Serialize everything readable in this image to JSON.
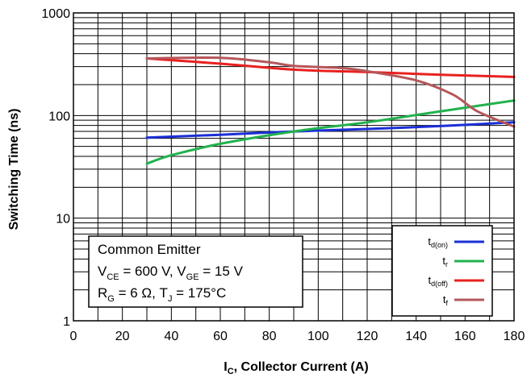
{
  "chart_data": {
    "type": "line",
    "xlabel": {
      "main": "I",
      "sub": "C",
      "rest": ", Collector Current (A)"
    },
    "ylabel": "Switching Time (ns)",
    "xlim": [
      0,
      180
    ],
    "ylim": [
      1,
      1000
    ],
    "y_scale": "log",
    "grid": true,
    "x_ticks": [
      "0",
      "20",
      "40",
      "60",
      "80",
      "100",
      "120",
      "140",
      "160",
      "180"
    ],
    "y_ticks": [
      "1",
      "10",
      "100",
      "1000"
    ],
    "legend_position": "bottom-right",
    "series": [
      {
        "name_main": "t",
        "name_sub": "d(on)",
        "color": "#1a2fd6",
        "x": [
          30,
          60,
          90,
          120,
          150,
          180
        ],
        "y": [
          61,
          65,
          70,
          74,
          79,
          86
        ]
      },
      {
        "name_main": "t",
        "name_sub": "r",
        "color": "#22b24c",
        "x": [
          30,
          40,
          60,
          90,
          120,
          150,
          180
        ],
        "y": [
          34,
          41,
          53,
          70,
          86,
          110,
          140
        ]
      },
      {
        "name_main": "t",
        "name_sub": "d(off)",
        "color": "#e8211f",
        "x": [
          30,
          60,
          90,
          120,
          150,
          180
        ],
        "y": [
          360,
          320,
          280,
          265,
          250,
          238
        ]
      },
      {
        "name_main": "t",
        "name_sub": "f",
        "color": "#b5575a",
        "x": [
          30,
          60,
          80,
          90,
          110,
          120,
          140,
          155,
          165,
          180
        ],
        "y": [
          360,
          365,
          330,
          305,
          290,
          270,
          220,
          160,
          110,
          78
        ]
      }
    ],
    "annotation": {
      "line1": "Common Emitter",
      "line2": [
        {
          "text": "V"
        },
        {
          "text": "CE",
          "sub": true
        },
        {
          "text": " = 600 V, V"
        },
        {
          "text": "GE",
          "sub": true
        },
        {
          "text": " = 15 V"
        }
      ],
      "line3": [
        {
          "text": "R"
        },
        {
          "text": "G",
          "sub": true
        },
        {
          "text": " = 6 Ω, T"
        },
        {
          "text": "J",
          "sub": true
        },
        {
          "text": " = 175°C"
        }
      ]
    }
  }
}
